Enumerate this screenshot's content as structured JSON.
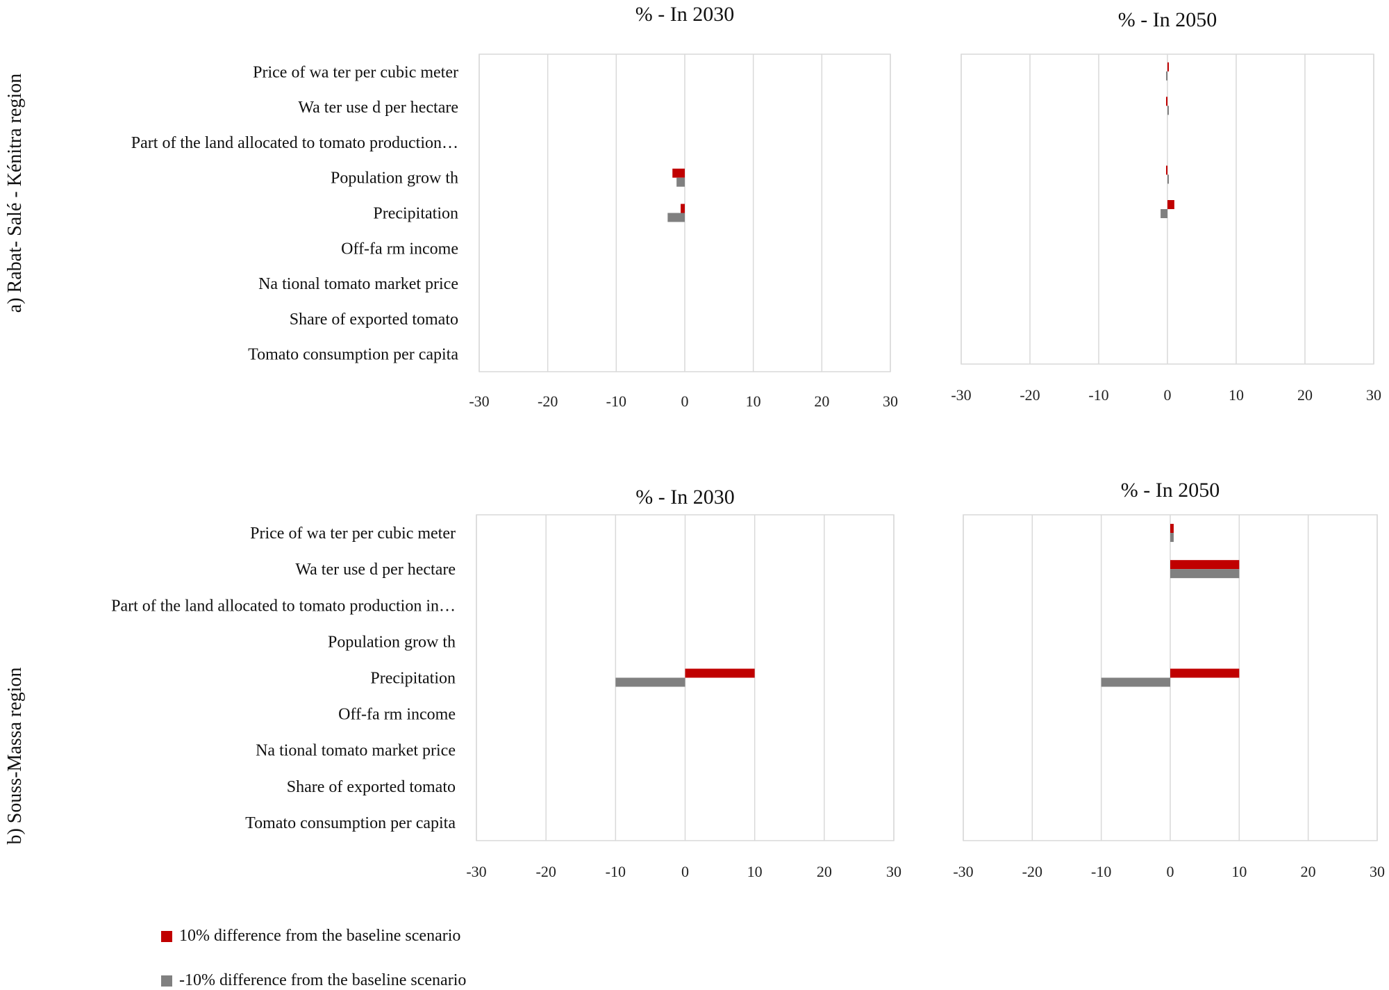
{
  "legend": [
    {
      "label": "10% difference from the baseline scenario",
      "color": "#c00000"
    },
    {
      "label": "-10% difference from the baseline scenario",
      "color": "#808080"
    }
  ],
  "region_labels": [
    "a) Rabat- Salé - Kénitra region",
    "b) Souss-Massa region"
  ],
  "chart_data": [
    {
      "type": "bar",
      "orientation": "horizontal",
      "title": "% - In 2030",
      "region": "a) Rabat- Salé - Kénitra region",
      "categories": [
        "Price of wa ter per cubic meter",
        "Wa ter use d per hectare",
        "Part of the land allocated to tomato production…",
        "Population grow th",
        "Precipitation",
        "Off-fa rm income",
        "Na tional tomato market price",
        "Share of exported tomato",
        "Tomato consumption per capita"
      ],
      "series": [
        {
          "name": "10% difference from the baseline scenario",
          "color": "#c00000",
          "values": [
            0,
            0,
            0,
            -1.8,
            -0.6,
            0,
            0,
            0,
            0
          ]
        },
        {
          "name": "-10% difference from the baseline scenario",
          "color": "#808080",
          "values": [
            0,
            0,
            0,
            -1.2,
            -2.5,
            0,
            0,
            0,
            0
          ]
        }
      ],
      "xlim": [
        -30,
        30
      ],
      "xticks": [
        "-30",
        "-20",
        "-10",
        "0",
        "10",
        "20",
        "30"
      ],
      "show_category_labels": true,
      "grid": true
    },
    {
      "type": "bar",
      "orientation": "horizontal",
      "title": "% - In 2050",
      "region": "a) Rabat- Salé - Kénitra region",
      "categories": [
        "Price of wa ter per cubic meter",
        "Wa ter use d per hectare",
        "Part of the land allocated to tomato production…",
        "Population grow th",
        "Precipitation",
        "Off-fa rm income",
        "Na tional tomato market price",
        "Share of exported tomato",
        "Tomato consumption per capita"
      ],
      "series": [
        {
          "name": "10% difference from the baseline scenario",
          "color": "#c00000",
          "values": [
            0.2,
            -0.2,
            0,
            -0.2,
            1.0,
            0,
            0,
            0,
            0
          ]
        },
        {
          "name": "-10% difference from the baseline scenario",
          "color": "#808080",
          "values": [
            -0.2,
            0.2,
            0,
            0.2,
            -1.0,
            0,
            0,
            0,
            0
          ]
        }
      ],
      "xlim": [
        -30,
        30
      ],
      "xticks": [
        "-30",
        "-20",
        "-10",
        "0",
        "10",
        "20",
        "30"
      ],
      "show_category_labels": false,
      "grid": true
    },
    {
      "type": "bar",
      "orientation": "horizontal",
      "title": "% - In 2030",
      "region": "b) Souss-Massa region",
      "categories": [
        "Price of wa ter per cubic meter",
        "Wa ter use d per hectare",
        "Part of the land allocated to tomato production in…",
        "Population grow th",
        "Precipitation",
        "Off-fa rm income",
        "Na tional tomato market price",
        "Share of exported tomato",
        "Tomato consumption per capita"
      ],
      "series": [
        {
          "name": "10% difference from the baseline scenario",
          "color": "#c00000",
          "values": [
            0,
            0,
            0,
            0,
            10,
            0,
            0,
            0,
            0
          ]
        },
        {
          "name": "-10% difference from the baseline scenario",
          "color": "#808080",
          "values": [
            0,
            0,
            0,
            0,
            -10,
            0,
            0,
            0,
            0
          ]
        }
      ],
      "xlim": [
        -30,
        30
      ],
      "xticks": [
        "-30",
        "-20",
        "-10",
        "0",
        "10",
        "20",
        "30"
      ],
      "show_category_labels": true,
      "grid": true
    },
    {
      "type": "bar",
      "orientation": "horizontal",
      "title": "% - In 2050",
      "region": "b) Souss-Massa region",
      "categories": [
        "Price of wa ter per cubic meter",
        "Wa ter use d per hectare",
        "Part of the land allocated to tomato production in…",
        "Population grow th",
        "Precipitation",
        "Off-fa rm income",
        "Na tional tomato market price",
        "Share of exported tomato",
        "Tomato consumption per capita"
      ],
      "series": [
        {
          "name": "10% difference from the baseline scenario",
          "color": "#c00000",
          "values": [
            0.5,
            10,
            0,
            0,
            10,
            0,
            0,
            0,
            0
          ]
        },
        {
          "name": "-10% difference from the baseline scenario",
          "color": "#808080",
          "values": [
            0.5,
            10,
            0,
            0,
            -10,
            0,
            0,
            0,
            0
          ]
        }
      ],
      "xlim": [
        -30,
        30
      ],
      "xticks": [
        "-30",
        "-20",
        "-10",
        "0",
        "10",
        "20",
        "30"
      ],
      "show_category_labels": false,
      "grid": true
    }
  ]
}
